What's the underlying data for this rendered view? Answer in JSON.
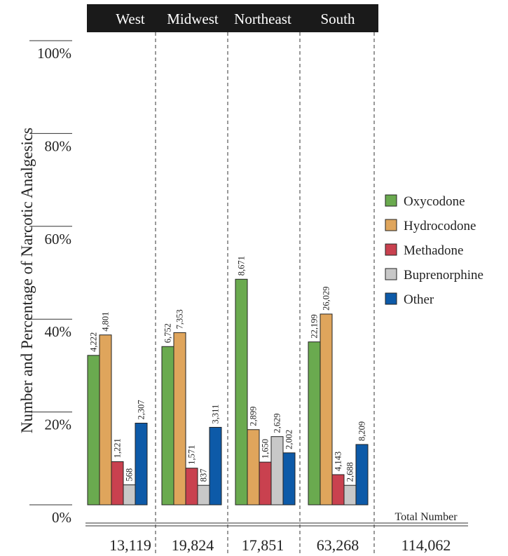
{
  "chart_data": {
    "type": "bar",
    "title": "",
    "xlabel": "",
    "ylabel": "Number and Percentage of Narcotic Analgesics",
    "ylim": [
      0,
      100
    ],
    "yticks": [
      "0%",
      "20%",
      "40%",
      "60%",
      "80%",
      "100%"
    ],
    "grid": false,
    "legend_position": "right",
    "categories": [
      "West",
      "Midwest",
      "Northeast",
      "South"
    ],
    "totals": [
      "13,119",
      "19,824",
      "17,851",
      "63,268"
    ],
    "total_header": "Total Number",
    "grand_total": "114,062",
    "series": [
      {
        "name": "Oxycodone",
        "color": "#6aaa4f",
        "percent": [
          32.2,
          34.1,
          48.6,
          35.1
        ],
        "labels": [
          "4,222",
          "6,752",
          "8,671",
          "22,199"
        ]
      },
      {
        "name": "Hydrocodone",
        "color": "#dfa55c",
        "percent": [
          36.6,
          37.1,
          16.2,
          41.1
        ],
        "labels": [
          "4,801",
          "7,353",
          "2,899",
          "26,029"
        ]
      },
      {
        "name": "Methadone",
        "color": "#c9414f",
        "percent": [
          9.3,
          7.9,
          9.2,
          6.5
        ],
        "labels": [
          "1,221",
          "1,571",
          "1,650",
          "4,143"
        ]
      },
      {
        "name": "Buprenorphine",
        "color": "#c8c8c8",
        "percent": [
          4.3,
          4.2,
          14.7,
          4.2
        ],
        "labels": [
          "568",
          "837",
          "2,629",
          "2,688"
        ]
      },
      {
        "name": "Other",
        "color": "#0d5aa8",
        "percent": [
          17.6,
          16.7,
          11.2,
          13.0
        ],
        "labels": [
          "2,307",
          "3,311",
          "2,002",
          "8,209"
        ]
      }
    ]
  }
}
